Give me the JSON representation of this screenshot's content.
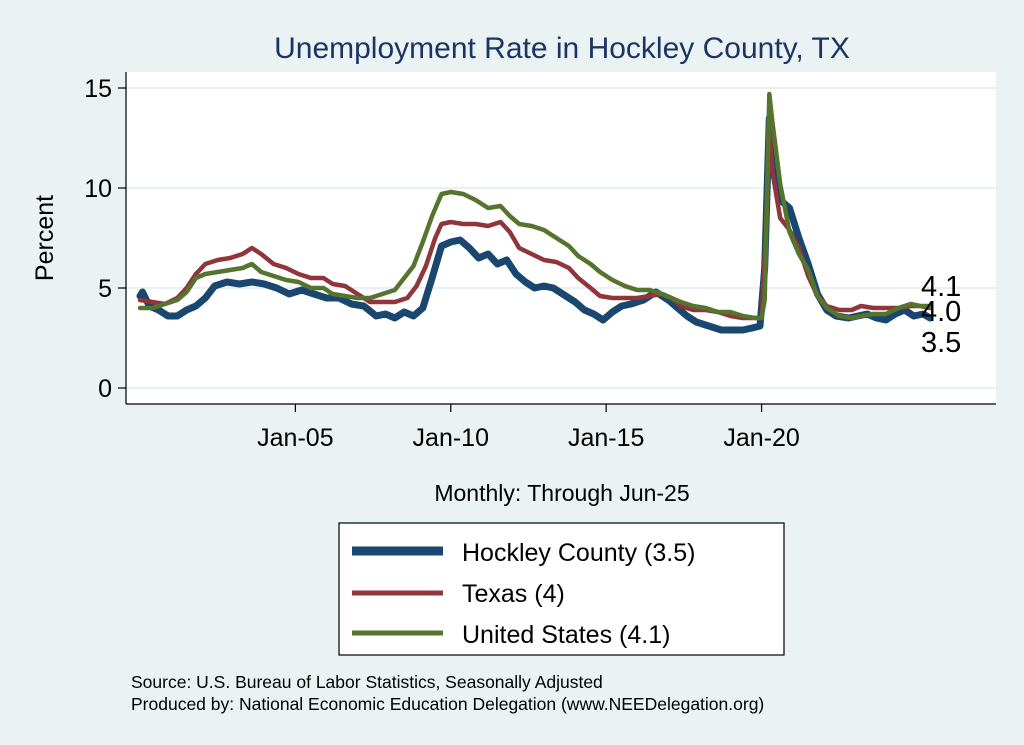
{
  "chart_data": {
    "type": "line",
    "title": "Unemployment Rate in Hockley  County, TX",
    "xlabel": "Monthly: Through Jun-25",
    "ylabel": "Percent",
    "x_range": [
      2000.0,
      2025.42
    ],
    "ylim": [
      -0.8,
      15.8
    ],
    "y_ticks": [
      0,
      5,
      10,
      15
    ],
    "x_ticks": [
      {
        "value": 2005,
        "label": "Jan-05"
      },
      {
        "value": 2010,
        "label": "Jan-10"
      },
      {
        "value": 2015,
        "label": "Jan-15"
      },
      {
        "value": 2020,
        "label": "Jan-20"
      }
    ],
    "grid": true,
    "series": [
      {
        "name": "Hockley  County",
        "legend_label": "Hockley  County (3.5)",
        "last_value_label": "3.5",
        "color": "#1a476f",
        "points": [
          [
            2000.0,
            4.6
          ],
          [
            2000.08,
            4.8
          ],
          [
            2000.3,
            4.1
          ],
          [
            2000.6,
            3.9
          ],
          [
            2000.9,
            3.6
          ],
          [
            2001.2,
            3.6
          ],
          [
            2001.5,
            3.9
          ],
          [
            2001.8,
            4.1
          ],
          [
            2002.1,
            4.5
          ],
          [
            2002.4,
            5.1
          ],
          [
            2002.8,
            5.3
          ],
          [
            2003.2,
            5.2
          ],
          [
            2003.6,
            5.3
          ],
          [
            2004.0,
            5.2
          ],
          [
            2004.4,
            5.0
          ],
          [
            2004.8,
            4.7
          ],
          [
            2005.2,
            4.9
          ],
          [
            2005.6,
            4.7
          ],
          [
            2006.0,
            4.5
          ],
          [
            2006.4,
            4.5
          ],
          [
            2006.8,
            4.2
          ],
          [
            2007.2,
            4.1
          ],
          [
            2007.6,
            3.6
          ],
          [
            2007.9,
            3.7
          ],
          [
            2008.2,
            3.5
          ],
          [
            2008.5,
            3.8
          ],
          [
            2008.8,
            3.6
          ],
          [
            2009.1,
            4.0
          ],
          [
            2009.4,
            5.5
          ],
          [
            2009.7,
            7.1
          ],
          [
            2010.0,
            7.3
          ],
          [
            2010.3,
            7.4
          ],
          [
            2010.6,
            7.0
          ],
          [
            2010.9,
            6.5
          ],
          [
            2011.2,
            6.7
          ],
          [
            2011.5,
            6.2
          ],
          [
            2011.8,
            6.4
          ],
          [
            2012.1,
            5.7
          ],
          [
            2012.4,
            5.3
          ],
          [
            2012.7,
            5.0
          ],
          [
            2013.0,
            5.1
          ],
          [
            2013.3,
            5.0
          ],
          [
            2013.6,
            4.7
          ],
          [
            2014.0,
            4.3
          ],
          [
            2014.3,
            3.9
          ],
          [
            2014.6,
            3.7
          ],
          [
            2014.9,
            3.4
          ],
          [
            2015.2,
            3.8
          ],
          [
            2015.5,
            4.1
          ],
          [
            2015.8,
            4.2
          ],
          [
            2016.2,
            4.4
          ],
          [
            2016.6,
            4.8
          ],
          [
            2017.0,
            4.4
          ],
          [
            2017.3,
            4.0
          ],
          [
            2017.6,
            3.6
          ],
          [
            2017.9,
            3.3
          ],
          [
            2018.3,
            3.1
          ],
          [
            2018.7,
            2.9
          ],
          [
            2019.1,
            2.9
          ],
          [
            2019.4,
            2.9
          ],
          [
            2019.7,
            3.0
          ],
          [
            2019.95,
            3.1
          ],
          [
            2020.1,
            6.0
          ],
          [
            2020.25,
            13.5
          ],
          [
            2020.35,
            11.0
          ],
          [
            2020.6,
            9.4
          ],
          [
            2020.9,
            9.0
          ],
          [
            2021.2,
            7.5
          ],
          [
            2021.5,
            6.2
          ],
          [
            2021.8,
            4.7
          ],
          [
            2022.1,
            3.9
          ],
          [
            2022.4,
            3.6
          ],
          [
            2022.8,
            3.5
          ],
          [
            2023.1,
            3.6
          ],
          [
            2023.4,
            3.7
          ],
          [
            2023.7,
            3.5
          ],
          [
            2024.0,
            3.4
          ],
          [
            2024.3,
            3.7
          ],
          [
            2024.6,
            3.9
          ],
          [
            2024.9,
            3.6
          ],
          [
            2025.2,
            3.7
          ],
          [
            2025.42,
            3.5
          ]
        ]
      },
      {
        "name": "Texas",
        "legend_label": "Texas (4)",
        "last_value_label": "4.0",
        "color": "#90353b",
        "points": [
          [
            2000.0,
            4.4
          ],
          [
            2000.4,
            4.3
          ],
          [
            2000.8,
            4.2
          ],
          [
            2001.2,
            4.5
          ],
          [
            2001.5,
            5.0
          ],
          [
            2001.8,
            5.7
          ],
          [
            2002.1,
            6.2
          ],
          [
            2002.5,
            6.4
          ],
          [
            2002.9,
            6.5
          ],
          [
            2003.3,
            6.7
          ],
          [
            2003.6,
            7.0
          ],
          [
            2003.9,
            6.7
          ],
          [
            2004.3,
            6.2
          ],
          [
            2004.7,
            6.0
          ],
          [
            2005.1,
            5.7
          ],
          [
            2005.5,
            5.5
          ],
          [
            2005.9,
            5.5
          ],
          [
            2006.2,
            5.2
          ],
          [
            2006.6,
            5.1
          ],
          [
            2007.0,
            4.7
          ],
          [
            2007.4,
            4.3
          ],
          [
            2007.8,
            4.3
          ],
          [
            2008.2,
            4.3
          ],
          [
            2008.6,
            4.5
          ],
          [
            2008.9,
            5.1
          ],
          [
            2009.2,
            6.1
          ],
          [
            2009.5,
            7.5
          ],
          [
            2009.7,
            8.2
          ],
          [
            2010.0,
            8.3
          ],
          [
            2010.4,
            8.2
          ],
          [
            2010.8,
            8.2
          ],
          [
            2011.2,
            8.1
          ],
          [
            2011.6,
            8.3
          ],
          [
            2011.9,
            7.8
          ],
          [
            2012.2,
            7.0
          ],
          [
            2012.6,
            6.7
          ],
          [
            2013.0,
            6.4
          ],
          [
            2013.4,
            6.3
          ],
          [
            2013.8,
            6.0
          ],
          [
            2014.1,
            5.5
          ],
          [
            2014.5,
            5.0
          ],
          [
            2014.8,
            4.6
          ],
          [
            2015.2,
            4.5
          ],
          [
            2015.6,
            4.5
          ],
          [
            2016.0,
            4.5
          ],
          [
            2016.4,
            4.6
          ],
          [
            2016.8,
            4.7
          ],
          [
            2017.1,
            4.5
          ],
          [
            2017.4,
            4.1
          ],
          [
            2017.8,
            3.9
          ],
          [
            2018.2,
            3.9
          ],
          [
            2018.6,
            3.8
          ],
          [
            2019.0,
            3.6
          ],
          [
            2019.4,
            3.5
          ],
          [
            2019.8,
            3.5
          ],
          [
            2020.0,
            3.5
          ],
          [
            2020.15,
            8.0
          ],
          [
            2020.25,
            13.0
          ],
          [
            2020.35,
            10.8
          ],
          [
            2020.6,
            8.5
          ],
          [
            2020.9,
            7.9
          ],
          [
            2021.2,
            7.0
          ],
          [
            2021.5,
            5.6
          ],
          [
            2021.8,
            4.6
          ],
          [
            2022.1,
            4.1
          ],
          [
            2022.5,
            3.9
          ],
          [
            2022.9,
            3.9
          ],
          [
            2023.2,
            4.1
          ],
          [
            2023.6,
            4.0
          ],
          [
            2024.0,
            4.0
          ],
          [
            2024.4,
            4.0
          ],
          [
            2024.8,
            4.1
          ],
          [
            2025.1,
            4.1
          ],
          [
            2025.42,
            4.0
          ]
        ]
      },
      {
        "name": "United States",
        "legend_label": "United States (4.1)",
        "last_value_label": "4.1",
        "color": "#55752f",
        "points": [
          [
            2000.0,
            4.0
          ],
          [
            2000.4,
            4.0
          ],
          [
            2000.8,
            4.2
          ],
          [
            2001.2,
            4.4
          ],
          [
            2001.5,
            4.8
          ],
          [
            2001.8,
            5.5
          ],
          [
            2002.1,
            5.7
          ],
          [
            2002.5,
            5.8
          ],
          [
            2002.9,
            5.9
          ],
          [
            2003.3,
            6.0
          ],
          [
            2003.6,
            6.2
          ],
          [
            2003.9,
            5.8
          ],
          [
            2004.3,
            5.6
          ],
          [
            2004.7,
            5.4
          ],
          [
            2005.1,
            5.3
          ],
          [
            2005.5,
            5.0
          ],
          [
            2005.9,
            5.0
          ],
          [
            2006.2,
            4.7
          ],
          [
            2006.6,
            4.6
          ],
          [
            2007.0,
            4.5
          ],
          [
            2007.4,
            4.5
          ],
          [
            2007.8,
            4.7
          ],
          [
            2008.2,
            4.9
          ],
          [
            2008.5,
            5.5
          ],
          [
            2008.8,
            6.1
          ],
          [
            2009.1,
            7.3
          ],
          [
            2009.4,
            8.6
          ],
          [
            2009.7,
            9.7
          ],
          [
            2010.0,
            9.8
          ],
          [
            2010.4,
            9.7
          ],
          [
            2010.8,
            9.4
          ],
          [
            2011.2,
            9.0
          ],
          [
            2011.6,
            9.1
          ],
          [
            2011.9,
            8.6
          ],
          [
            2012.2,
            8.2
          ],
          [
            2012.6,
            8.1
          ],
          [
            2013.0,
            7.9
          ],
          [
            2013.4,
            7.5
          ],
          [
            2013.8,
            7.1
          ],
          [
            2014.1,
            6.6
          ],
          [
            2014.5,
            6.2
          ],
          [
            2014.8,
            5.8
          ],
          [
            2015.2,
            5.4
          ],
          [
            2015.6,
            5.1
          ],
          [
            2016.0,
            4.9
          ],
          [
            2016.4,
            4.9
          ],
          [
            2016.8,
            4.7
          ],
          [
            2017.1,
            4.5
          ],
          [
            2017.4,
            4.3
          ],
          [
            2017.8,
            4.1
          ],
          [
            2018.2,
            4.0
          ],
          [
            2018.6,
            3.8
          ],
          [
            2019.0,
            3.8
          ],
          [
            2019.4,
            3.6
          ],
          [
            2019.8,
            3.5
          ],
          [
            2020.0,
            3.5
          ],
          [
            2020.1,
            4.4
          ],
          [
            2020.25,
            14.7
          ],
          [
            2020.35,
            13.3
          ],
          [
            2020.6,
            10.2
          ],
          [
            2020.9,
            7.8
          ],
          [
            2021.2,
            6.7
          ],
          [
            2021.5,
            5.9
          ],
          [
            2021.8,
            4.6
          ],
          [
            2022.1,
            4.0
          ],
          [
            2022.5,
            3.6
          ],
          [
            2022.9,
            3.5
          ],
          [
            2023.2,
            3.6
          ],
          [
            2023.6,
            3.7
          ],
          [
            2024.0,
            3.7
          ],
          [
            2024.4,
            4.0
          ],
          [
            2024.8,
            4.2
          ],
          [
            2025.1,
            4.1
          ],
          [
            2025.42,
            4.1
          ]
        ]
      }
    ]
  },
  "legend_position": "bottom",
  "footer": {
    "source": "Source: U.S. Bureau of Labor Statistics, Seasonally Adjusted",
    "producer": "Produced by: National Economic Education Delegation (www.NEEDelegation.org)"
  }
}
